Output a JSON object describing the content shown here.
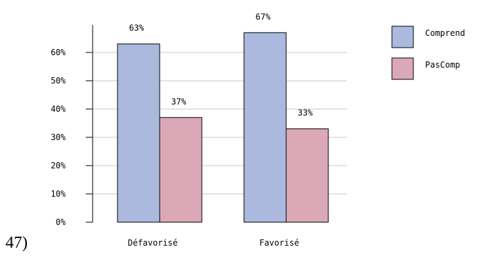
{
  "caption": "47)",
  "chart_data": {
    "type": "bar",
    "categories": [
      "Défavorisé",
      "Favorisé"
    ],
    "series": [
      {
        "name": "Comprend",
        "values": [
          63,
          67
        ],
        "labels": [
          "63%",
          "67%"
        ],
        "color": "#abb9de"
      },
      {
        "name": "PasComp",
        "values": [
          37,
          33
        ],
        "labels": [
          "37%",
          "33%"
        ],
        "color": "#dba8b8"
      }
    ],
    "y_ticks": [
      {
        "value": 0,
        "label": "0%"
      },
      {
        "value": 10,
        "label": "10%"
      },
      {
        "value": 20,
        "label": "20%"
      },
      {
        "value": 30,
        "label": "30%"
      },
      {
        "value": 40,
        "label": "40%"
      },
      {
        "value": 50,
        "label": "50%"
      },
      {
        "value": 60,
        "label": "60%"
      }
    ],
    "ylim": [
      0,
      70
    ],
    "grid": true,
    "legend_position": "top-right"
  }
}
